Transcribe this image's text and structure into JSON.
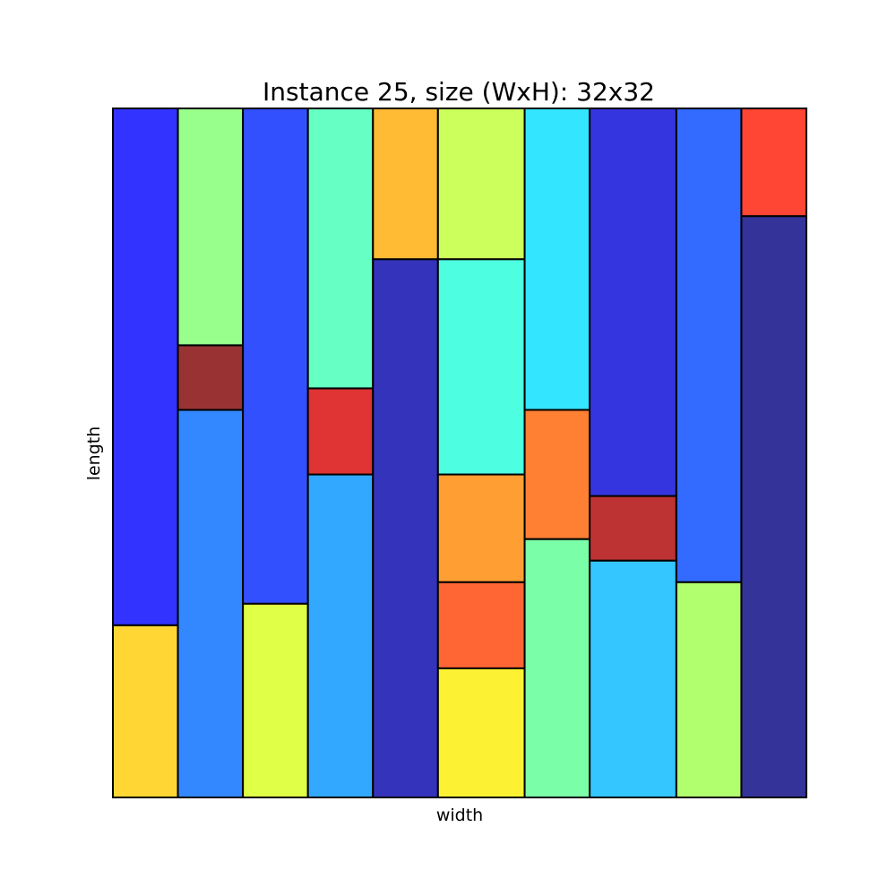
{
  "chart_data": {
    "type": "rectangle-packing",
    "title": "Instance 25, size (WxH): 32x32",
    "xlabel": "width",
    "ylabel": "length",
    "xlim": [
      0,
      32
    ],
    "ylim": [
      0,
      32
    ],
    "ticks_visible": false,
    "grid": false,
    "rectangles": [
      {
        "x": 0,
        "y": 0,
        "w": 3,
        "h": 8,
        "color": "#ffd633"
      },
      {
        "x": 0,
        "y": 8,
        "w": 3,
        "h": 24,
        "color": "#3333ff"
      },
      {
        "x": 3,
        "y": 0,
        "w": 3,
        "h": 18,
        "color": "#3388ff"
      },
      {
        "x": 3,
        "y": 18,
        "w": 3,
        "h": 3,
        "color": "#993333"
      },
      {
        "x": 3,
        "y": 21,
        "w": 3,
        "h": 11,
        "color": "#99ff8c"
      },
      {
        "x": 6,
        "y": 0,
        "w": 3,
        "h": 9,
        "color": "#e0ff47"
      },
      {
        "x": 6,
        "y": 9,
        "w": 3,
        "h": 23,
        "color": "#3350ff"
      },
      {
        "x": 9,
        "y": 0,
        "w": 3,
        "h": 15,
        "color": "#33a8ff"
      },
      {
        "x": 9,
        "y": 15,
        "w": 3,
        "h": 4,
        "color": "#e03333"
      },
      {
        "x": 9,
        "y": 19,
        "w": 3,
        "h": 13,
        "color": "#66ffc4"
      },
      {
        "x": 12,
        "y": 0,
        "w": 3,
        "h": 25,
        "color": "#3333bb"
      },
      {
        "x": 12,
        "y": 25,
        "w": 3,
        "h": 7,
        "color": "#ffbb33"
      },
      {
        "x": 15,
        "y": 0,
        "w": 4,
        "h": 6,
        "color": "#fcf233"
      },
      {
        "x": 15,
        "y": 6,
        "w": 4,
        "h": 4,
        "color": "#ff6633"
      },
      {
        "x": 15,
        "y": 10,
        "w": 4,
        "h": 5,
        "color": "#ff9e33"
      },
      {
        "x": 15,
        "y": 15,
        "w": 4,
        "h": 10,
        "color": "#4dffe0"
      },
      {
        "x": 15,
        "y": 25,
        "w": 4,
        "h": 7,
        "color": "#ccff5c"
      },
      {
        "x": 19,
        "y": 0,
        "w": 3,
        "h": 12,
        "color": "#7affa8"
      },
      {
        "x": 19,
        "y": 12,
        "w": 3,
        "h": 6,
        "color": "#ff8033"
      },
      {
        "x": 19,
        "y": 18,
        "w": 3,
        "h": 14,
        "color": "#33e5ff"
      },
      {
        "x": 22,
        "y": 0,
        "w": 4,
        "h": 11,
        "color": "#33c6ff"
      },
      {
        "x": 22,
        "y": 11,
        "w": 4,
        "h": 3,
        "color": "#bd3333"
      },
      {
        "x": 22,
        "y": 14,
        "w": 4,
        "h": 18,
        "color": "#3535e0"
      },
      {
        "x": 26,
        "y": 0,
        "w": 3,
        "h": 10,
        "color": "#b1ff6e"
      },
      {
        "x": 26,
        "y": 10,
        "w": 3,
        "h": 22,
        "color": "#336aff"
      },
      {
        "x": 29,
        "y": 0,
        "w": 3,
        "h": 27,
        "color": "#333399"
      },
      {
        "x": 29,
        "y": 27,
        "w": 3,
        "h": 5,
        "color": "#ff4533"
      }
    ]
  }
}
